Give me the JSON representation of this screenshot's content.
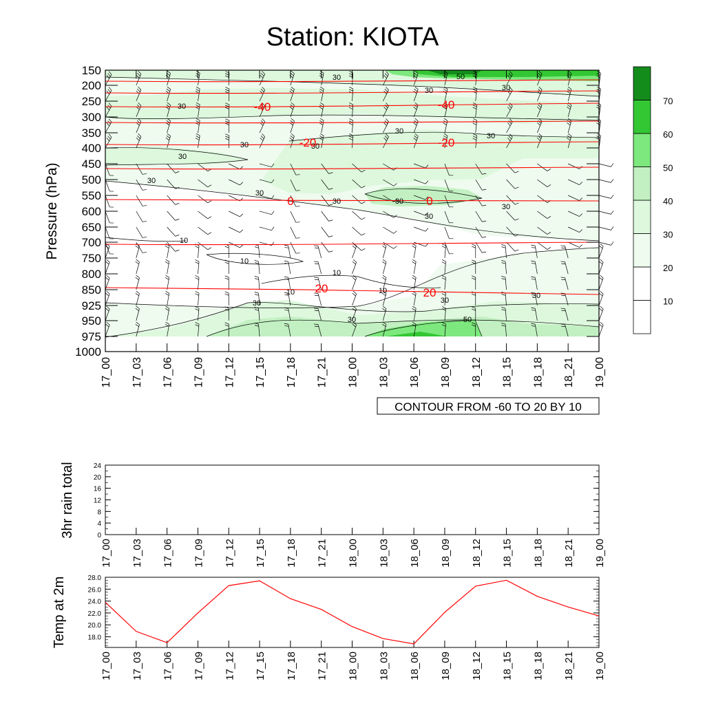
{
  "title": "Station: KIOTA",
  "colors": {
    "iso": "#ff0000",
    "temp_line": "#ff0000",
    "contour_line": "#000000",
    "barb": "#000000",
    "fill_levels": [
      "#ffffff",
      "#ffffff",
      "#eefbee",
      "#ddf8dd",
      "#c2f0c2",
      "#7de87d",
      "#34c734",
      "#148c1c"
    ]
  },
  "chart_data": [
    {
      "type": "heatmap",
      "name": "cross-section",
      "ylabel": "Pressure (hPa)",
      "xlabel": "",
      "y_ticks": [
        150,
        200,
        250,
        300,
        350,
        400,
        450,
        500,
        550,
        600,
        650,
        700,
        750,
        800,
        850,
        925,
        950,
        975,
        1000
      ],
      "x_ticks": [
        "17_00",
        "17_03",
        "17_06",
        "17_09",
        "17_12",
        "17_15",
        "17_18",
        "17_21",
        "18_00",
        "18_03",
        "18_06",
        "18_09",
        "18_12",
        "18_15",
        "18_18",
        "18_21",
        "19_00"
      ],
      "contour_note": "CONTOUR FROM -60 TO 20 BY 10",
      "colorbar": {
        "levels": [
          10,
          20,
          30,
          40,
          50,
          60,
          70
        ]
      },
      "fill_labels": [
        "30",
        "30",
        "50",
        "30",
        "30",
        "30",
        "30",
        "30",
        "30",
        "30",
        "30",
        "30",
        "30",
        "30",
        "30",
        "30",
        "10",
        "10",
        "10",
        "10",
        "10",
        "30",
        "30",
        "30",
        "50",
        "30"
      ],
      "isotherms": [
        {
          "label": "-40",
          "values": [
            -40,
            -40
          ]
        },
        {
          "label": "-20",
          "values": [
            -20,
            -20
          ]
        },
        {
          "label": "0",
          "values": [
            0,
            0
          ]
        },
        {
          "label": "20",
          "values": [
            20,
            20
          ]
        }
      ]
    },
    {
      "type": "line",
      "name": "rain",
      "ylabel": "3hr rain total",
      "ylim": [
        0,
        24
      ],
      "y_ticks": [
        0,
        4,
        8,
        12,
        16,
        20,
        24
      ],
      "x_ticks": [
        "17_00",
        "17_03",
        "17_06",
        "17_09",
        "17_12",
        "17_15",
        "17_18",
        "17_21",
        "18_00",
        "18_03",
        "18_06",
        "18_09",
        "18_12",
        "18_15",
        "18_18",
        "18_21",
        "19_00"
      ],
      "values": []
    },
    {
      "type": "line",
      "name": "temp",
      "ylabel": "Temp at 2m",
      "ylim": [
        16.2,
        28.0
      ],
      "y_ticks": [
        "18.0",
        "20.0",
        "22.0",
        "24.0",
        "26.0",
        "28.0"
      ],
      "x_ticks": [
        "17_00",
        "17_03",
        "17_06",
        "17_09",
        "17_12",
        "17_15",
        "17_18",
        "17_21",
        "18_00",
        "18_03",
        "18_06",
        "18_09",
        "18_12",
        "18_15",
        "18_18",
        "18_21",
        "19_00"
      ],
      "values": [
        23.8,
        18.9,
        17.0,
        22.0,
        26.6,
        27.4,
        24.4,
        22.6,
        19.7,
        17.7,
        16.8,
        22.1,
        26.5,
        27.5,
        24.8,
        23.0,
        21.5
      ]
    }
  ]
}
